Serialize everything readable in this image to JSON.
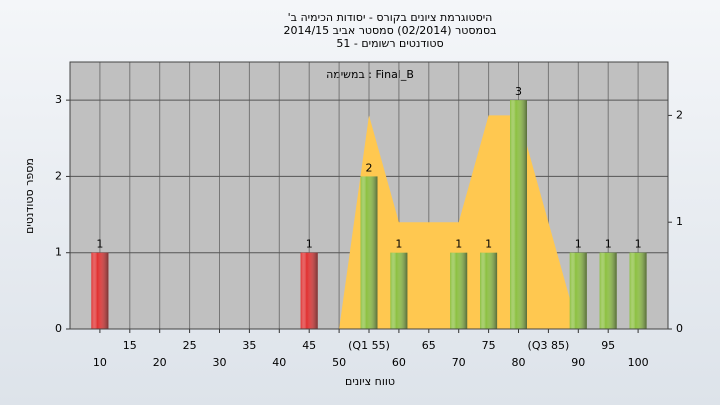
{
  "chart_data": {
    "type": "bar",
    "title": [
      "'היסטוגרמת ציונים בקורס - יסודות הכימיה ב",
      "בסמסטר  (02/2014)  סמסטר אביב 2014/15",
      "סטודנטים רשומים - 51"
    ],
    "subtitle": "במשימה : Final_B",
    "x_label": "טווח ציונים",
    "y_label": "מספר סטודנטים",
    "xlim": [
      5,
      105
    ],
    "xticks": [
      10,
      15,
      20,
      25,
      30,
      35,
      40,
      45,
      50,
      {
        "value": 55,
        "label": "(Q1 55)"
      },
      60,
      65,
      70,
      75,
      80,
      {
        "value": 85,
        "label": "(Q3 85)"
      },
      90,
      95,
      100
    ],
    "ylim": [
      0,
      3.5
    ],
    "yticks": [
      0,
      1,
      2,
      3
    ],
    "y2lim": [
      0,
      2.5
    ],
    "y2ticks": [
      0,
      1,
      2
    ],
    "grid": true,
    "series": [
      {
        "type": "area",
        "axis": "y2",
        "color": "#ffc850",
        "x": [
          50,
          55,
          60,
          70,
          75,
          80,
          90
        ],
        "values": [
          0,
          2,
          1,
          1,
          2,
          2,
          0
        ]
      },
      {
        "type": "bar",
        "x": [
          10,
          45,
          55,
          60,
          70,
          75,
          80,
          90,
          95,
          100
        ],
        "values": [
          1,
          1,
          2,
          1,
          1,
          1,
          3,
          1,
          1,
          1
        ],
        "colors": [
          "#e03030",
          "#e03030",
          "#8cc040",
          "#8cc040",
          "#8cc040",
          "#8cc040",
          "#8cc040",
          "#8cc040",
          "#8cc040",
          "#8cc040"
        ]
      }
    ]
  }
}
